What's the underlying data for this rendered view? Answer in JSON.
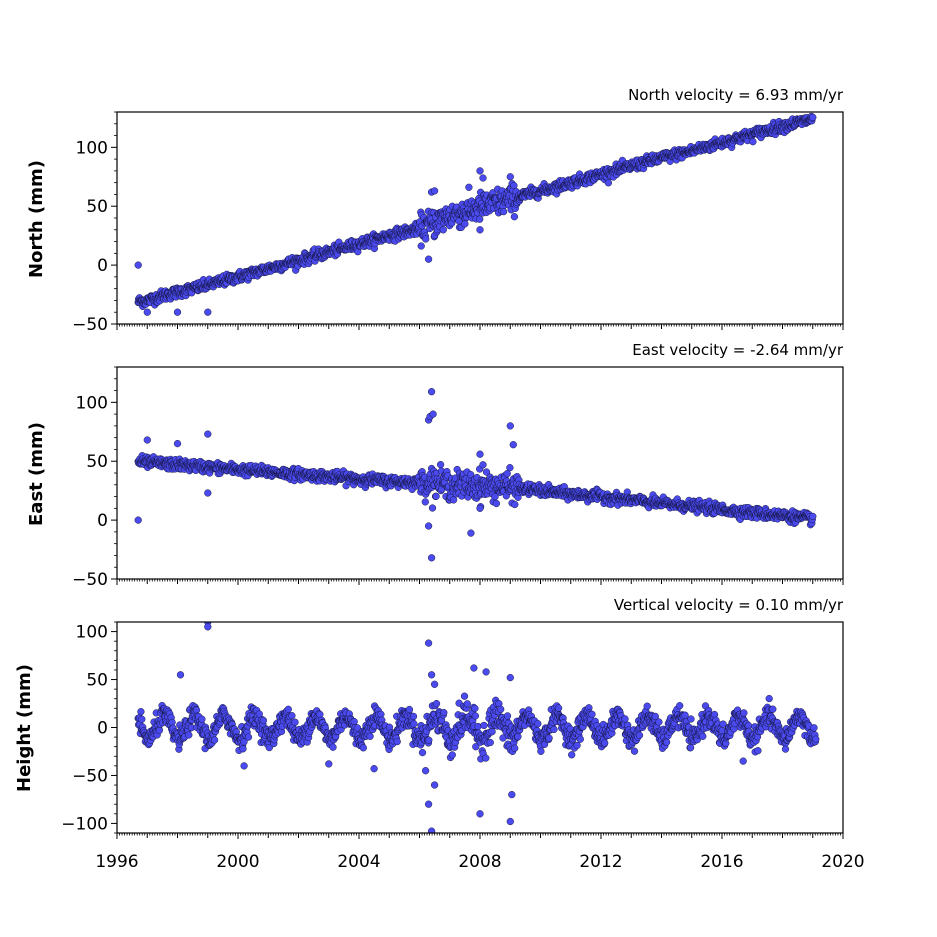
{
  "chart_data": [
    {
      "type": "scatter",
      "title": "North velocity = 6.93 mm/yr",
      "ylabel": "North (mm)",
      "xlim": [
        1996,
        2020
      ],
      "ylim": [
        -50,
        130
      ],
      "yticks": [
        -50,
        0,
        50,
        100
      ],
      "ytick_labels": [
        "−50",
        "0",
        "50",
        "100"
      ],
      "xticks_visible": false,
      "series": [
        {
          "x": [
            1996.7,
            1997.0,
            1997.5,
            1998.0,
            1998.5,
            1999.0,
            2000.0,
            2001.0,
            2002.0,
            2003.0,
            2004.0,
            2005.0,
            2006.0,
            2006.4,
            2007.0,
            2008.0,
            2009.0,
            2010.0,
            2011.0,
            2012.0,
            2013.0,
            2014.0,
            2015.0,
            2016.0,
            2017.0,
            2018.0,
            2019.0
          ],
          "y": [
            -31,
            -30,
            -26,
            -23,
            -20,
            -17,
            -10,
            -3,
            4,
            11,
            18,
            25,
            31,
            35,
            42,
            49,
            56,
            63,
            70,
            77,
            84,
            91,
            97,
            104,
            111,
            118,
            124
          ],
          "extra": [
            [
              1996.7,
              0
            ],
            [
              1997.0,
              -40
            ],
            [
              1998.0,
              -40
            ],
            [
              1999.0,
              -40
            ],
            [
              2006.3,
              5
            ],
            [
              2006.4,
              62
            ],
            [
              2006.5,
              63
            ],
            [
              2008.0,
              80
            ],
            [
              2008.1,
              74
            ],
            [
              2009.0,
              75
            ],
            [
              2007.5,
              35
            ],
            [
              2008.0,
              30
            ]
          ]
        }
      ]
    },
    {
      "type": "scatter",
      "title": "East velocity = -2.64 mm/yr",
      "ylabel": "East (mm)",
      "xlim": [
        1996,
        2020
      ],
      "ylim": [
        -50,
        130
      ],
      "yticks": [
        -50,
        0,
        50,
        100
      ],
      "ytick_labels": [
        "−50",
        "0",
        "50",
        "100"
      ],
      "xticks_visible": false,
      "series": [
        {
          "x": [
            1996.7,
            1997.0,
            1998.0,
            1999.0,
            2000.0,
            2001.0,
            2002.0,
            2003.0,
            2004.0,
            2005.0,
            2006.0,
            2006.4,
            2007.0,
            2008.0,
            2009.0,
            2010.0,
            2011.0,
            2012.0,
            2013.0,
            2014.0,
            2015.0,
            2016.0,
            2017.0,
            2018.0,
            2019.0
          ],
          "y": [
            50,
            49,
            47,
            45,
            43,
            41,
            39,
            37,
            35,
            33,
            32,
            33,
            30,
            29,
            28,
            25,
            22,
            20,
            17,
            14,
            12,
            9,
            6,
            4,
            1
          ],
          "extra": [
            [
              1996.7,
              0
            ],
            [
              1997.0,
              68
            ],
            [
              1998.0,
              65
            ],
            [
              1999.0,
              73
            ],
            [
              1999.0,
              23
            ],
            [
              2006.3,
              85
            ],
            [
              2006.35,
              88
            ],
            [
              2006.4,
              109
            ],
            [
              2006.45,
              90
            ],
            [
              2006.4,
              -32
            ],
            [
              2006.3,
              -5
            ],
            [
              2008.0,
              56
            ],
            [
              2008.1,
              47
            ],
            [
              2009.0,
              80
            ],
            [
              2009.1,
              64
            ],
            [
              2007.7,
              -11
            ],
            [
              2008.0,
              10
            ]
          ]
        }
      ]
    },
    {
      "type": "scatter",
      "title": "Vertical velocity = 0.10 mm/yr",
      "ylabel": "Height (mm)",
      "xlabel": "",
      "xlim": [
        1996,
        2020
      ],
      "ylim": [
        -110,
        110
      ],
      "yticks": [
        -100,
        -50,
        0,
        50,
        100
      ],
      "ytick_labels": [
        "−100",
        "−50",
        "0",
        "50",
        "100"
      ],
      "xticks": [
        1996,
        2000,
        2004,
        2008,
        2012,
        2016,
        2020
      ],
      "xtick_labels": [
        "1996",
        "2000",
        "2004",
        "2008",
        "2012",
        "2016",
        "2020"
      ],
      "series": [
        {
          "x_range": [
            1996.7,
            2019.1
          ],
          "mean": 0,
          "seasonal_amplitude": 12,
          "extra": [
            [
              1999.0,
              110
            ],
            [
              1999.0,
              105
            ],
            [
              1998.1,
              55
            ],
            [
              2006.3,
              88
            ],
            [
              2006.4,
              55
            ],
            [
              2006.5,
              45
            ],
            [
              2006.3,
              -80
            ],
            [
              2006.4,
              -108
            ],
            [
              2006.2,
              -45
            ],
            [
              2006.5,
              -60
            ],
            [
              2007.8,
              62
            ],
            [
              2008.0,
              -90
            ],
            [
              2008.2,
              58
            ],
            [
              2009.0,
              -98
            ],
            [
              2009.0,
              52
            ],
            [
              2009.05,
              -70
            ],
            [
              2004.5,
              -43
            ],
            [
              2003.0,
              -38
            ],
            [
              2000.2,
              -40
            ],
            [
              2016.7,
              -35
            ]
          ]
        }
      ]
    }
  ]
}
